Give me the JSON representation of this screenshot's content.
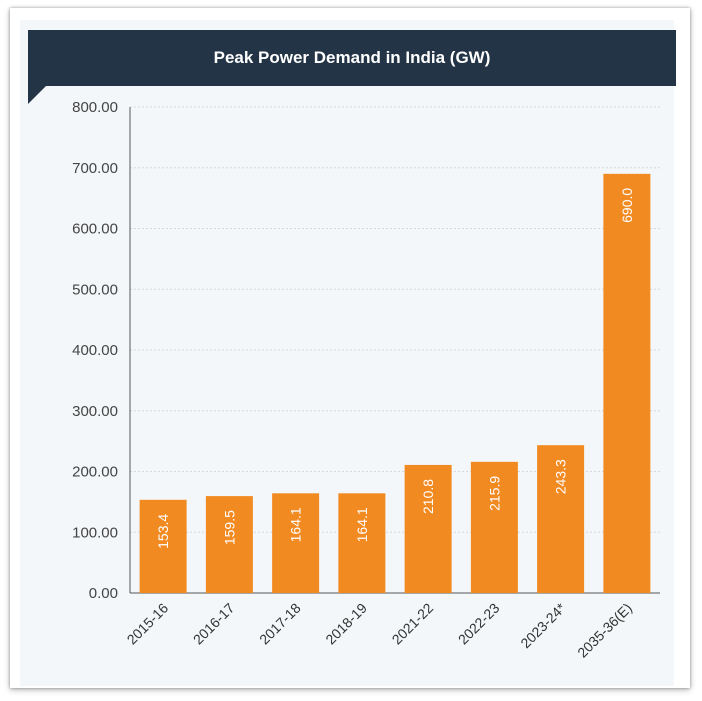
{
  "colors": {
    "bar": "#f28a22",
    "header_bg": "#233446",
    "header_text": "#ffffff",
    "grid": "#d5d8dc",
    "value_label": "#ffffff"
  },
  "chart_data": {
    "type": "bar",
    "title": "Peak Power Demand in India (GW)",
    "xlabel": "",
    "ylabel": "",
    "ylim": [
      0,
      800
    ],
    "y_ticks": [
      "0.00",
      "100.00",
      "200.00",
      "300.00",
      "400.00",
      "500.00",
      "600.00",
      "700.00",
      "800.00"
    ],
    "categories": [
      "2015-16",
      "2016-17",
      "2017-18",
      "2018-19",
      "2021-22",
      "2022-23",
      "2023-24*",
      "2035-36(E)"
    ],
    "values": [
      153.4,
      159.5,
      164.1,
      164.1,
      210.8,
      215.9,
      243.3,
      690.0
    ],
    "value_labels": [
      "153.4",
      "159.5",
      "164.1",
      "164.1",
      "210.8",
      "215.9",
      "243.3",
      "690.0"
    ],
    "grid": true,
    "legend": "none"
  }
}
